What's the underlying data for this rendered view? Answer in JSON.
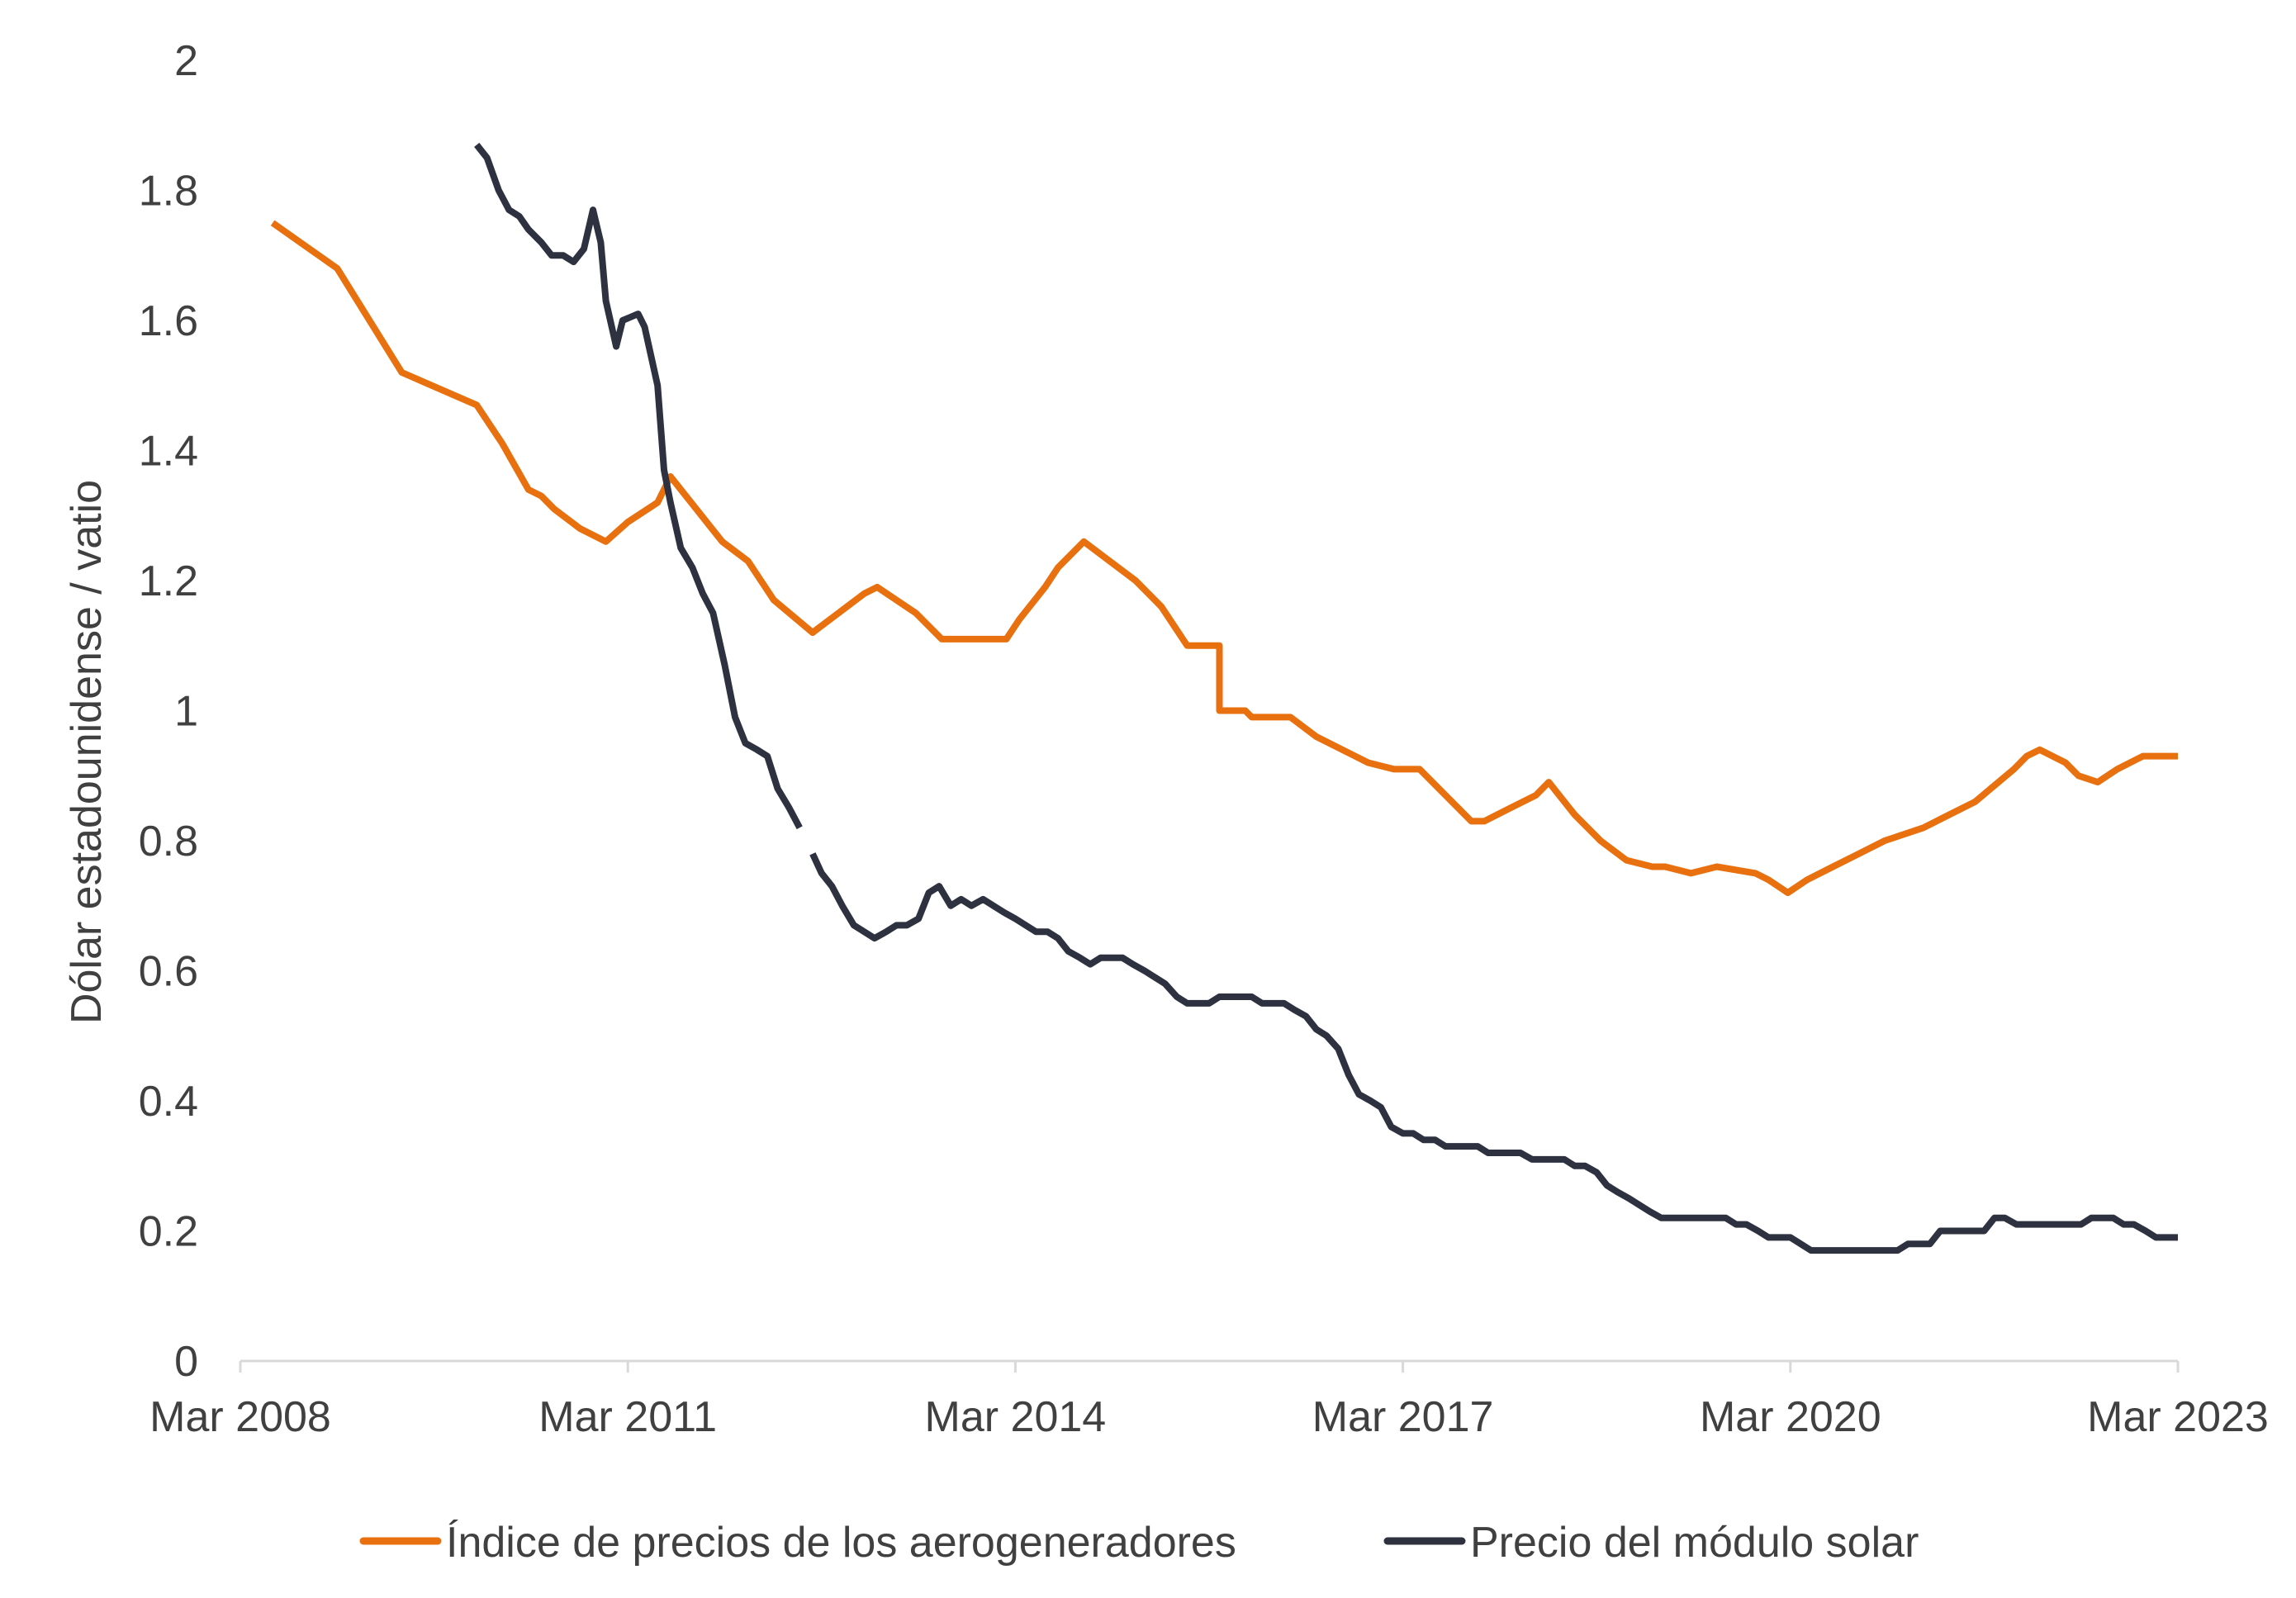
{
  "chart_data": {
    "type": "line",
    "title": "",
    "xlabel": "",
    "ylabel": "Dólar estadounidense / vatio",
    "xlim": [
      2008.17,
      2023.17
    ],
    "ylim": [
      0,
      2
    ],
    "y_ticks": [
      "0",
      "0.2",
      "0.4",
      "0.6",
      "0.8",
      "1",
      "1.2",
      "1.4",
      "1.6",
      "1.8",
      "2"
    ],
    "y_tick_values": [
      0,
      0.2,
      0.4,
      0.6,
      0.8,
      1,
      1.2,
      1.4,
      1.6,
      1.8,
      2
    ],
    "x_ticks": [
      "Mar 2008",
      "Mar 2011",
      "Mar 2014",
      "Mar 2017",
      "Mar 2020",
      "Mar 2023"
    ],
    "x_tick_values": [
      2008.17,
      2011.17,
      2014.17,
      2017.17,
      2020.17,
      2023.17
    ],
    "legend_position": "bottom",
    "series": [
      {
        "name": "Índice de precios de los aerogeneradores",
        "color": "#E8700F",
        "segments": [
          [
            [
              2008.42,
              1.75
            ],
            [
              2008.92,
              1.68
            ],
            [
              2009.42,
              1.52
            ],
            [
              2010.0,
              1.47
            ],
            [
              2010.2,
              1.41
            ],
            [
              2010.4,
              1.34
            ],
            [
              2010.5,
              1.33
            ],
            [
              2010.6,
              1.31
            ],
            [
              2010.8,
              1.28
            ],
            [
              2011.0,
              1.26
            ],
            [
              2011.17,
              1.29
            ],
            [
              2011.4,
              1.32
            ],
            [
              2011.5,
              1.36
            ],
            [
              2011.7,
              1.31
            ],
            [
              2011.9,
              1.26
            ],
            [
              2012.1,
              1.23
            ],
            [
              2012.3,
              1.17
            ],
            [
              2012.6,
              1.12
            ],
            [
              2012.8,
              1.15
            ],
            [
              2013.0,
              1.18
            ],
            [
              2013.1,
              1.19
            ],
            [
              2013.4,
              1.15
            ],
            [
              2013.6,
              1.11
            ],
            [
              2014.1,
              1.11
            ],
            [
              2014.2,
              1.14
            ],
            [
              2014.4,
              1.19
            ],
            [
              2014.5,
              1.22
            ],
            [
              2014.7,
              1.26
            ],
            [
              2014.9,
              1.23
            ],
            [
              2015.1,
              1.2
            ],
            [
              2015.3,
              1.16
            ],
            [
              2015.5,
              1.1
            ],
            [
              2015.75,
              1.1
            ],
            [
              2015.75,
              1.0
            ],
            [
              2015.95,
              1.0
            ],
            [
              2016.0,
              0.99
            ],
            [
              2016.3,
              0.99
            ],
            [
              2016.5,
              0.96
            ],
            [
              2016.8,
              0.93
            ],
            [
              2016.9,
              0.92
            ],
            [
              2017.1,
              0.91
            ],
            [
              2017.3,
              0.91
            ],
            [
              2017.5,
              0.87
            ],
            [
              2017.7,
              0.83
            ],
            [
              2017.8,
              0.83
            ],
            [
              2018.0,
              0.85
            ],
            [
              2018.2,
              0.87
            ],
            [
              2018.3,
              0.89
            ],
            [
              2018.5,
              0.84
            ],
            [
              2018.7,
              0.8
            ],
            [
              2018.9,
              0.77
            ],
            [
              2019.1,
              0.76
            ],
            [
              2019.2,
              0.76
            ],
            [
              2019.4,
              0.75
            ],
            [
              2019.6,
              0.76
            ],
            [
              2019.9,
              0.75
            ],
            [
              2020.0,
              0.74
            ],
            [
              2020.15,
              0.72
            ],
            [
              2020.3,
              0.74
            ],
            [
              2020.5,
              0.76
            ],
            [
              2020.7,
              0.78
            ],
            [
              2020.9,
              0.8
            ],
            [
              2021.2,
              0.82
            ],
            [
              2021.4,
              0.84
            ],
            [
              2021.6,
              0.86
            ],
            [
              2021.9,
              0.91
            ],
            [
              2022.0,
              0.93
            ],
            [
              2022.1,
              0.94
            ],
            [
              2022.3,
              0.92
            ],
            [
              2022.4,
              0.9
            ],
            [
              2022.55,
              0.89
            ],
            [
              2022.7,
              0.91
            ],
            [
              2022.9,
              0.93
            ],
            [
              2023.17,
              0.93
            ]
          ]
        ]
      },
      {
        "name": "Precio del módulo solar",
        "color": "#2D3140",
        "segments": [
          [
            [
              2010.0,
              1.87
            ],
            [
              2010.08,
              1.85
            ],
            [
              2010.17,
              1.8
            ],
            [
              2010.25,
              1.77
            ],
            [
              2010.33,
              1.76
            ],
            [
              2010.4,
              1.74
            ],
            [
              2010.5,
              1.72
            ],
            [
              2010.58,
              1.7
            ],
            [
              2010.67,
              1.7
            ],
            [
              2010.75,
              1.69
            ],
            [
              2010.83,
              1.71
            ],
            [
              2010.9,
              1.77
            ],
            [
              2010.96,
              1.72
            ],
            [
              2011.0,
              1.63
            ],
            [
              2011.08,
              1.56
            ],
            [
              2011.13,
              1.6
            ],
            [
              2011.25,
              1.61
            ],
            [
              2011.3,
              1.59
            ],
            [
              2011.4,
              1.5
            ],
            [
              2011.45,
              1.37
            ],
            [
              2011.5,
              1.32
            ],
            [
              2011.58,
              1.25
            ],
            [
              2011.67,
              1.22
            ],
            [
              2011.75,
              1.18
            ],
            [
              2011.83,
              1.15
            ],
            [
              2011.92,
              1.07
            ],
            [
              2012.0,
              0.99
            ],
            [
              2012.08,
              0.95
            ],
            [
              2012.17,
              0.94
            ],
            [
              2012.25,
              0.93
            ],
            [
              2012.33,
              0.88
            ],
            [
              2012.42,
              0.85
            ],
            [
              2012.5,
              0.82
            ]
          ],
          [
            [
              2012.6,
              0.78
            ],
            [
              2012.67,
              0.75
            ],
            [
              2012.75,
              0.73
            ],
            [
              2012.83,
              0.7
            ],
            [
              2012.92,
              0.67
            ],
            [
              2013.0,
              0.66
            ],
            [
              2013.08,
              0.65
            ],
            [
              2013.17,
              0.66
            ],
            [
              2013.25,
              0.67
            ],
            [
              2013.33,
              0.67
            ],
            [
              2013.42,
              0.68
            ],
            [
              2013.5,
              0.72
            ],
            [
              2013.58,
              0.73
            ],
            [
              2013.67,
              0.7
            ],
            [
              2013.75,
              0.71
            ],
            [
              2013.83,
              0.7
            ],
            [
              2013.92,
              0.71
            ],
            [
              2014.0,
              0.7
            ],
            [
              2014.08,
              0.69
            ],
            [
              2014.17,
              0.68
            ],
            [
              2014.25,
              0.67
            ],
            [
              2014.33,
              0.66
            ],
            [
              2014.42,
              0.66
            ],
            [
              2014.5,
              0.65
            ],
            [
              2014.58,
              0.63
            ],
            [
              2014.67,
              0.62
            ],
            [
              2014.75,
              0.61
            ],
            [
              2014.83,
              0.62
            ],
            [
              2014.92,
              0.62
            ],
            [
              2015.0,
              0.62
            ],
            [
              2015.08,
              0.61
            ],
            [
              2015.17,
              0.6
            ],
            [
              2015.25,
              0.59
            ],
            [
              2015.33,
              0.58
            ],
            [
              2015.42,
              0.56
            ],
            [
              2015.5,
              0.55
            ],
            [
              2015.58,
              0.55
            ],
            [
              2015.67,
              0.55
            ],
            [
              2015.75,
              0.56
            ],
            [
              2015.83,
              0.56
            ],
            [
              2015.92,
              0.56
            ],
            [
              2016.0,
              0.56
            ],
            [
              2016.08,
              0.55
            ],
            [
              2016.17,
              0.55
            ],
            [
              2016.25,
              0.55
            ],
            [
              2016.33,
              0.54
            ],
            [
              2016.42,
              0.53
            ],
            [
              2016.5,
              0.51
            ],
            [
              2016.58,
              0.5
            ],
            [
              2016.67,
              0.48
            ],
            [
              2016.75,
              0.44
            ],
            [
              2016.83,
              0.41
            ],
            [
              2016.92,
              0.4
            ],
            [
              2017.0,
              0.39
            ],
            [
              2017.08,
              0.36
            ],
            [
              2017.17,
              0.35
            ],
            [
              2017.25,
              0.35
            ],
            [
              2017.33,
              0.34
            ],
            [
              2017.42,
              0.34
            ],
            [
              2017.5,
              0.33
            ],
            [
              2017.58,
              0.33
            ],
            [
              2017.67,
              0.33
            ],
            [
              2017.75,
              0.33
            ],
            [
              2017.83,
              0.32
            ],
            [
              2017.92,
              0.32
            ],
            [
              2018.0,
              0.32
            ],
            [
              2018.08,
              0.32
            ],
            [
              2018.17,
              0.31
            ],
            [
              2018.25,
              0.31
            ],
            [
              2018.33,
              0.31
            ],
            [
              2018.42,
              0.31
            ],
            [
              2018.5,
              0.3
            ],
            [
              2018.58,
              0.3
            ],
            [
              2018.67,
              0.29
            ],
            [
              2018.75,
              0.27
            ],
            [
              2018.83,
              0.26
            ],
            [
              2018.92,
              0.25
            ],
            [
              2019.0,
              0.24
            ],
            [
              2019.08,
              0.23
            ],
            [
              2019.17,
              0.22
            ],
            [
              2019.25,
              0.22
            ],
            [
              2019.33,
              0.22
            ],
            [
              2019.42,
              0.22
            ],
            [
              2019.5,
              0.22
            ],
            [
              2019.58,
              0.22
            ],
            [
              2019.67,
              0.22
            ],
            [
              2019.75,
              0.21
            ],
            [
              2019.83,
              0.21
            ],
            [
              2019.92,
              0.2
            ],
            [
              2020.0,
              0.19
            ],
            [
              2020.08,
              0.19
            ],
            [
              2020.17,
              0.19
            ],
            [
              2020.25,
              0.18
            ],
            [
              2020.33,
              0.17
            ],
            [
              2020.42,
              0.17
            ],
            [
              2020.5,
              0.17
            ],
            [
              2020.58,
              0.17
            ],
            [
              2020.67,
              0.17
            ],
            [
              2020.75,
              0.17
            ],
            [
              2020.83,
              0.17
            ],
            [
              2020.92,
              0.17
            ],
            [
              2021.0,
              0.17
            ],
            [
              2021.08,
              0.18
            ],
            [
              2021.17,
              0.18
            ],
            [
              2021.25,
              0.18
            ],
            [
              2021.33,
              0.2
            ],
            [
              2021.42,
              0.2
            ],
            [
              2021.5,
              0.2
            ],
            [
              2021.58,
              0.2
            ],
            [
              2021.67,
              0.2
            ],
            [
              2021.75,
              0.22
            ],
            [
              2021.83,
              0.22
            ],
            [
              2021.92,
              0.21
            ],
            [
              2022.0,
              0.21
            ],
            [
              2022.08,
              0.21
            ],
            [
              2022.17,
              0.21
            ],
            [
              2022.25,
              0.21
            ],
            [
              2022.33,
              0.21
            ],
            [
              2022.42,
              0.21
            ],
            [
              2022.5,
              0.22
            ],
            [
              2022.58,
              0.22
            ],
            [
              2022.67,
              0.22
            ],
            [
              2022.75,
              0.21
            ],
            [
              2022.83,
              0.21
            ],
            [
              2022.92,
              0.2
            ],
            [
              2023.0,
              0.19
            ],
            [
              2023.08,
              0.19
            ],
            [
              2023.17,
              0.19
            ]
          ]
        ]
      }
    ]
  }
}
